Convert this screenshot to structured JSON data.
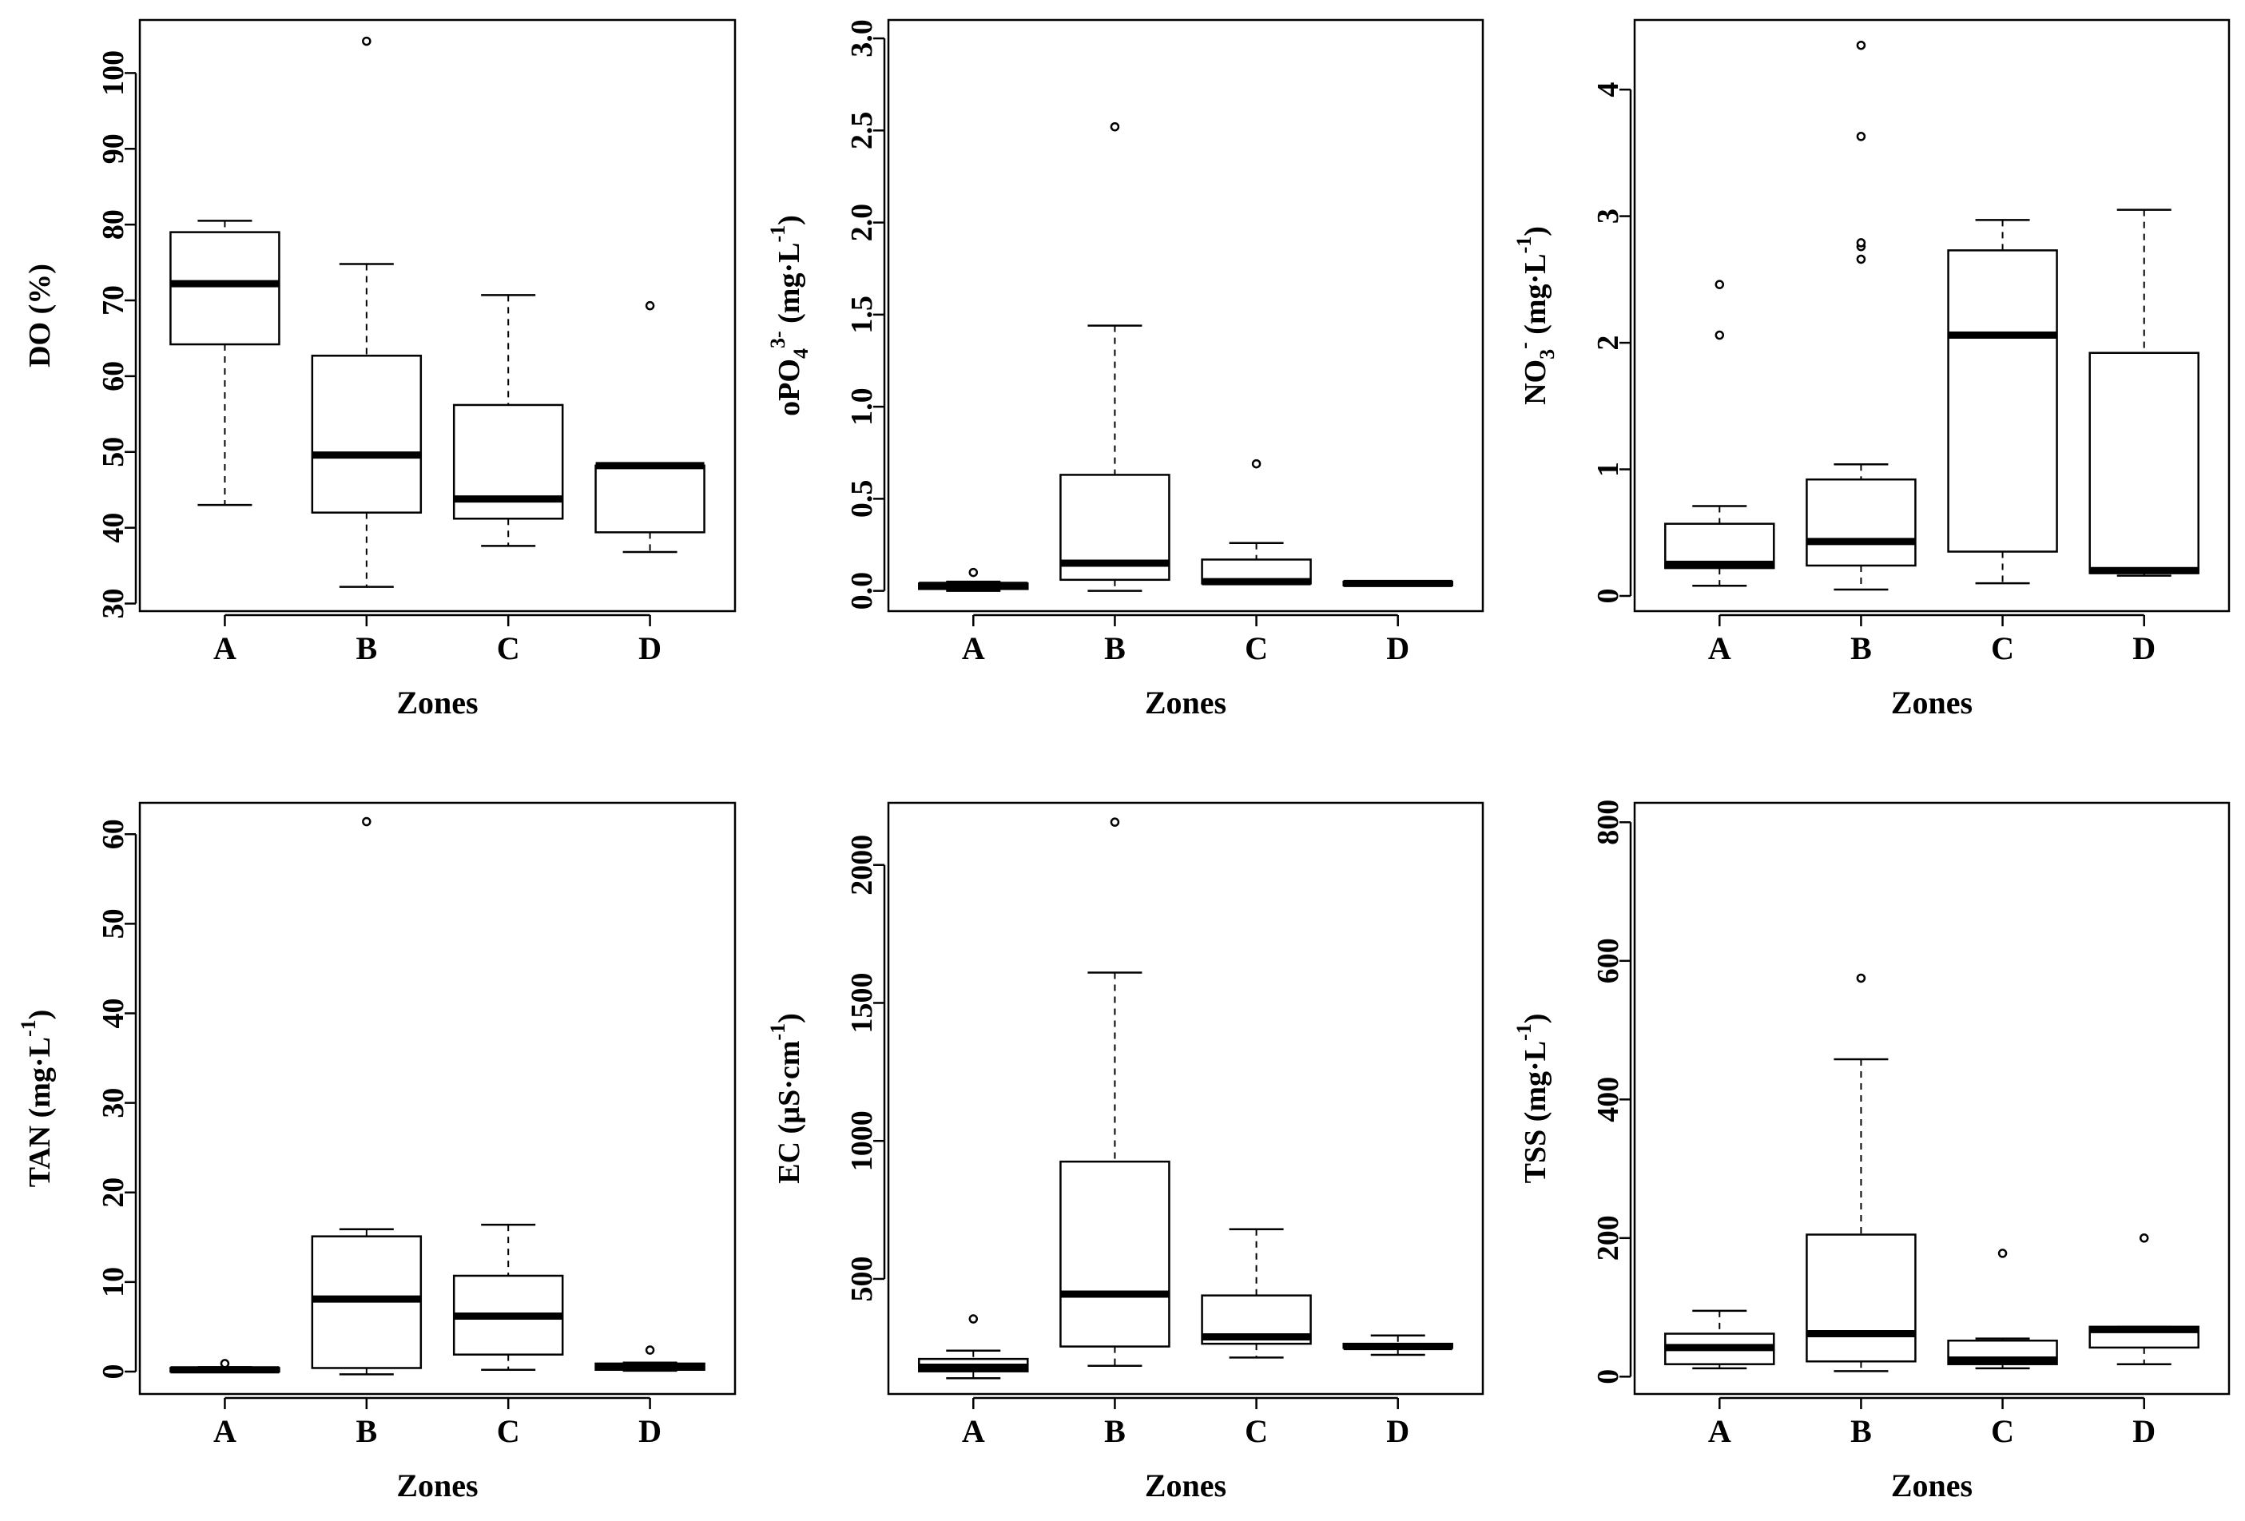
{
  "chart_data": [
    {
      "type": "boxplot",
      "xlabel": "Zones",
      "ylabel": "DO (%)",
      "ylabel_parts": [
        {
          "t": "DO (%)"
        }
      ],
      "categories": [
        "A",
        "B",
        "C",
        "D"
      ],
      "ylim": [
        29,
        107
      ],
      "yticks": [
        30,
        40,
        50,
        60,
        70,
        80,
        90,
        100
      ],
      "ytick_labels": [
        "30",
        "40",
        "50",
        "60",
        "70",
        "80",
        "90",
        "100"
      ],
      "boxes": [
        {
          "min": 43,
          "q1": 64.2,
          "median": 72.2,
          "q3": 79,
          "max": 80.5,
          "outliers": []
        },
        {
          "min": 32.2,
          "q1": 42,
          "median": 49.6,
          "q3": 62.7,
          "max": 74.8,
          "outliers": [
            104.2
          ]
        },
        {
          "min": 37.6,
          "q1": 41.2,
          "median": 43.8,
          "q3": 56.2,
          "max": 70.7,
          "outliers": []
        },
        {
          "min": 36.8,
          "q1": 39.4,
          "median": 48.2,
          "q3": 48.2,
          "max": 48.2,
          "outliers": [
            69.3
          ]
        }
      ]
    },
    {
      "type": "boxplot",
      "xlabel": "Zones",
      "ylabel": "oPO43- (mg·L-1)",
      "ylabel_parts": [
        {
          "t": "oPO"
        },
        {
          "t": "4",
          "s": "sub"
        },
        {
          "t": "3-",
          "s": "sup"
        },
        {
          "t": " (mg·L"
        },
        {
          "t": "-1",
          "s": "sup"
        },
        {
          "t": ")"
        }
      ],
      "categories": [
        "A",
        "B",
        "C",
        "D"
      ],
      "ylim": [
        -0.11,
        3.1
      ],
      "yticks": [
        0,
        0.5,
        1,
        1.5,
        2,
        2.5,
        3
      ],
      "ytick_labels": [
        "0.0",
        "0.5",
        "1.0",
        "1.5",
        "2.0",
        "2.5",
        "3.0"
      ],
      "boxes": [
        {
          "min": 0,
          "q1": 0.01,
          "median": 0.03,
          "q3": 0.04,
          "max": 0.05,
          "outliers": [
            0.1
          ]
        },
        {
          "min": 0,
          "q1": 0.06,
          "median": 0.15,
          "q3": 0.63,
          "max": 1.44,
          "outliers": [
            2.52
          ]
        },
        {
          "min": 0.04,
          "q1": 0.04,
          "median": 0.05,
          "q3": 0.17,
          "max": 0.26,
          "outliers": [
            0.69
          ]
        },
        {
          "min": 0.03,
          "q1": 0.03,
          "median": 0.04,
          "q3": 0.05,
          "max": 0.05,
          "outliers": []
        }
      ]
    },
    {
      "type": "boxplot",
      "xlabel": "Zones",
      "ylabel": "NO3- (mg·L-1)",
      "ylabel_parts": [
        {
          "t": "NO"
        },
        {
          "t": "3",
          "s": "sub"
        },
        {
          "t": "-",
          "s": "sup"
        },
        {
          "t": " (mg·L"
        },
        {
          "t": "-1",
          "s": "sup"
        },
        {
          "t": ")"
        }
      ],
      "categories": [
        "A",
        "B",
        "C",
        "D"
      ],
      "ylim": [
        -0.12,
        4.55
      ],
      "yticks": [
        0,
        1,
        2,
        3,
        4
      ],
      "ytick_labels": [
        "0",
        "1",
        "2",
        "3",
        "4"
      ],
      "boxes": [
        {
          "min": 0.08,
          "q1": 0.22,
          "median": 0.25,
          "q3": 0.57,
          "max": 0.71,
          "outliers": [
            2.06,
            2.46
          ]
        },
        {
          "min": 0.05,
          "q1": 0.24,
          "median": 0.43,
          "q3": 0.92,
          "max": 1.04,
          "outliers": [
            2.66,
            2.76,
            2.79,
            3.63,
            4.35
          ]
        },
        {
          "min": 0.1,
          "q1": 0.35,
          "median": 2.06,
          "q3": 2.73,
          "max": 2.97,
          "outliers": []
        },
        {
          "min": 0.16,
          "q1": 0.18,
          "median": 0.2,
          "q3": 1.92,
          "max": 3.05,
          "outliers": []
        }
      ]
    },
    {
      "type": "boxplot",
      "xlabel": "Zones",
      "ylabel": "TAN (mg·L-1)",
      "ylabel_parts": [
        {
          "t": "TAN (mg·L"
        },
        {
          "t": "-1",
          "s": "sup"
        },
        {
          "t": ")"
        }
      ],
      "categories": [
        "A",
        "B",
        "C",
        "D"
      ],
      "ylim": [
        -2.5,
        63.5
      ],
      "yticks": [
        0,
        10,
        20,
        30,
        40,
        50,
        60
      ],
      "ytick_labels": [
        "0",
        "10",
        "20",
        "30",
        "40",
        "50",
        "60"
      ],
      "boxes": [
        {
          "min": 0,
          "q1": 0,
          "median": 0.2,
          "q3": 0.4,
          "max": 0.5,
          "outliers": [
            0.9
          ]
        },
        {
          "min": -0.3,
          "q1": 0.4,
          "median": 8.1,
          "q3": 15.1,
          "max": 15.9,
          "outliers": [
            61.4
          ]
        },
        {
          "min": 0.2,
          "q1": 1.9,
          "median": 6.2,
          "q3": 10.7,
          "max": 16.4,
          "outliers": []
        },
        {
          "min": 0.1,
          "q1": 0.2,
          "median": 0.5,
          "q3": 0.9,
          "max": 1.0,
          "outliers": [
            2.4
          ]
        }
      ]
    },
    {
      "type": "boxplot",
      "xlabel": "Zones",
      "ylabel": "EC (µS·cm-1)",
      "ylabel_parts": [
        {
          "t": "EC (µS·cm"
        },
        {
          "t": "-1",
          "s": "sup"
        },
        {
          "t": ")"
        }
      ],
      "categories": [
        "A",
        "B",
        "C",
        "D"
      ],
      "ylim": [
        83,
        2225
      ],
      "yticks": [
        500,
        1000,
        1500,
        2000
      ],
      "ytick_labels": [
        "500",
        "1000",
        "1500",
        "2000"
      ],
      "boxes": [
        {
          "min": 140,
          "q1": 165,
          "median": 180,
          "q3": 210,
          "max": 240,
          "outliers": [
            355
          ]
        },
        {
          "min": 185,
          "q1": 255,
          "median": 445,
          "q3": 925,
          "max": 1610,
          "outliers": [
            2155
          ]
        },
        {
          "min": 215,
          "q1": 265,
          "median": 290,
          "q3": 440,
          "max": 680,
          "outliers": []
        },
        {
          "min": 225,
          "q1": 250,
          "median": 255,
          "q3": 265,
          "max": 295,
          "outliers": []
        }
      ]
    },
    {
      "type": "boxplot",
      "xlabel": "Zones",
      "ylabel": "TSS (mg·L-1)",
      "ylabel_parts": [
        {
          "t": "TSS (mg·L"
        },
        {
          "t": "-1",
          "s": "sup"
        },
        {
          "t": ")"
        }
      ],
      "categories": [
        "A",
        "B",
        "C",
        "D"
      ],
      "ylim": [
        -25,
        828
      ],
      "yticks": [
        0,
        200,
        400,
        600,
        800
      ],
      "ytick_labels": [
        "0",
        "200",
        "400",
        "600",
        "800"
      ],
      "boxes": [
        {
          "min": 12,
          "q1": 18,
          "median": 42,
          "q3": 62,
          "max": 95,
          "outliers": []
        },
        {
          "min": 8,
          "q1": 22,
          "median": 62,
          "q3": 205,
          "max": 458,
          "outliers": [
            575
          ]
        },
        {
          "min": 12,
          "q1": 18,
          "median": 24,
          "q3": 52,
          "max": 55,
          "outliers": [
            178
          ]
        },
        {
          "min": 18,
          "q1": 42,
          "median": 68,
          "q3": 72,
          "max": 72,
          "outliers": [
            200
          ]
        }
      ]
    }
  ]
}
